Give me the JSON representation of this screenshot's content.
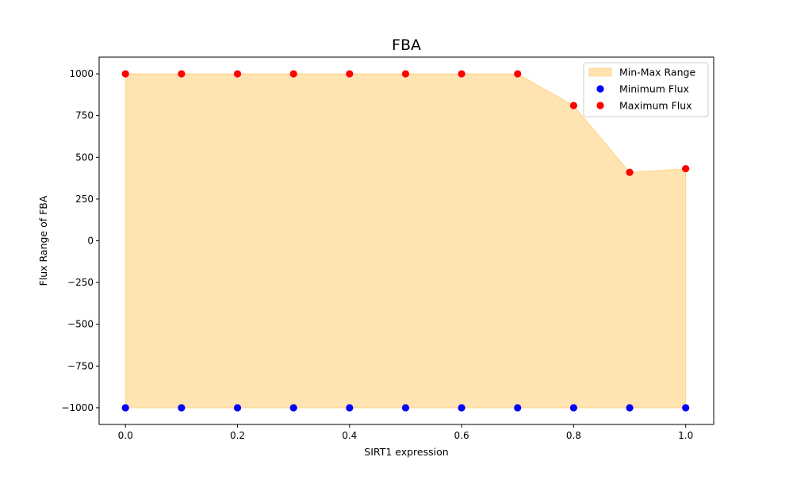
{
  "chart_data": {
    "type": "area",
    "title": "FBA",
    "xlabel": "SIRT1 expression",
    "ylabel": "Flux Range of FBA",
    "x": [
      0.0,
      0.1,
      0.2,
      0.3,
      0.4,
      0.5,
      0.6,
      0.7,
      0.8,
      0.9,
      1.0
    ],
    "series": [
      {
        "name": "Min-Max Range",
        "kind": "fill_between",
        "color": "#ffc864",
        "lower_ref": "Minimum Flux",
        "upper_ref": "Maximum Flux"
      },
      {
        "name": "Minimum Flux",
        "kind": "scatter",
        "color": "#0000ff",
        "values": [
          -1000,
          -1000,
          -1000,
          -1000,
          -1000,
          -1000,
          -1000,
          -1000,
          -1000,
          -1000,
          -1000
        ]
      },
      {
        "name": "Maximum Flux",
        "kind": "scatter",
        "color": "#ff0000",
        "values": [
          1000,
          1000,
          1000,
          1000,
          1000,
          1000,
          1000,
          1000,
          810,
          410,
          432
        ]
      }
    ],
    "xlim": [
      -0.047,
      1.05
    ],
    "ylim": [
      -1100,
      1100
    ],
    "xticks": [
      0.0,
      0.2,
      0.4,
      0.6,
      0.8,
      1.0
    ],
    "xtick_labels": [
      "0.0",
      "0.2",
      "0.4",
      "0.6",
      "0.8",
      "1.0"
    ],
    "yticks": [
      -1000,
      -750,
      -500,
      -250,
      0,
      250,
      500,
      750,
      1000
    ],
    "ytick_labels": [
      "−1000",
      "−750",
      "−500",
      "−250",
      "0",
      "250",
      "500",
      "750",
      "1000"
    ],
    "grid": false,
    "legend_position": "top-right"
  }
}
